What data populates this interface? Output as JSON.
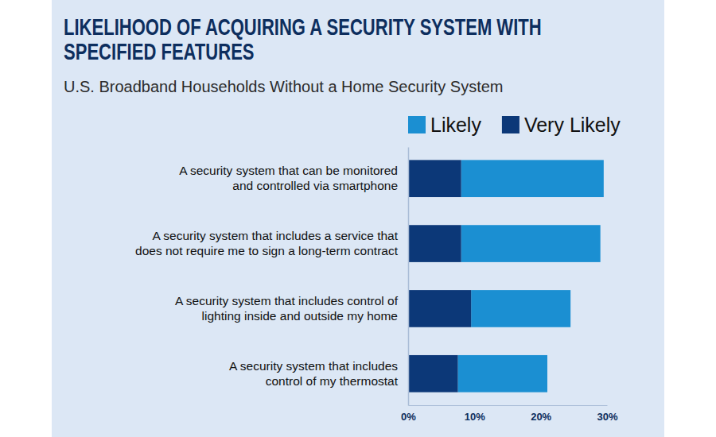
{
  "chart_data": {
    "type": "bar",
    "orientation": "horizontal",
    "stacked": true,
    "title": "LIKELIHOOD OF ACQUIRING A SECURITY SYSTEM WITH\nSPECIFIED FEATURES",
    "subtitle": "U.S. Broadband Households Without a Home Security System",
    "categories": [
      "A security system that can be monitored\nand controlled via smartphone",
      "A security system that includes a service that\ndoes not require me to sign a long-term contract",
      "A security system that includes control of\nlighting inside and outside my home",
      "A security system that includes\ncontrol of my thermostat"
    ],
    "series": [
      {
        "name": "Likely",
        "color": "#1b8fd2",
        "values": [
          21.5,
          21,
          15,
          13.5
        ]
      },
      {
        "name": "Very Likely",
        "color": "#0c3878",
        "values": [
          8,
          8,
          9.5,
          7.5
        ]
      }
    ],
    "xlim": [
      0,
      30
    ],
    "xticks": [
      {
        "value": 0,
        "label": "0%"
      },
      {
        "value": 10,
        "label": "10%"
      },
      {
        "value": 20,
        "label": "20%"
      },
      {
        "value": 30,
        "label": "30%"
      }
    ],
    "legend": "top-right",
    "grid": false
  }
}
